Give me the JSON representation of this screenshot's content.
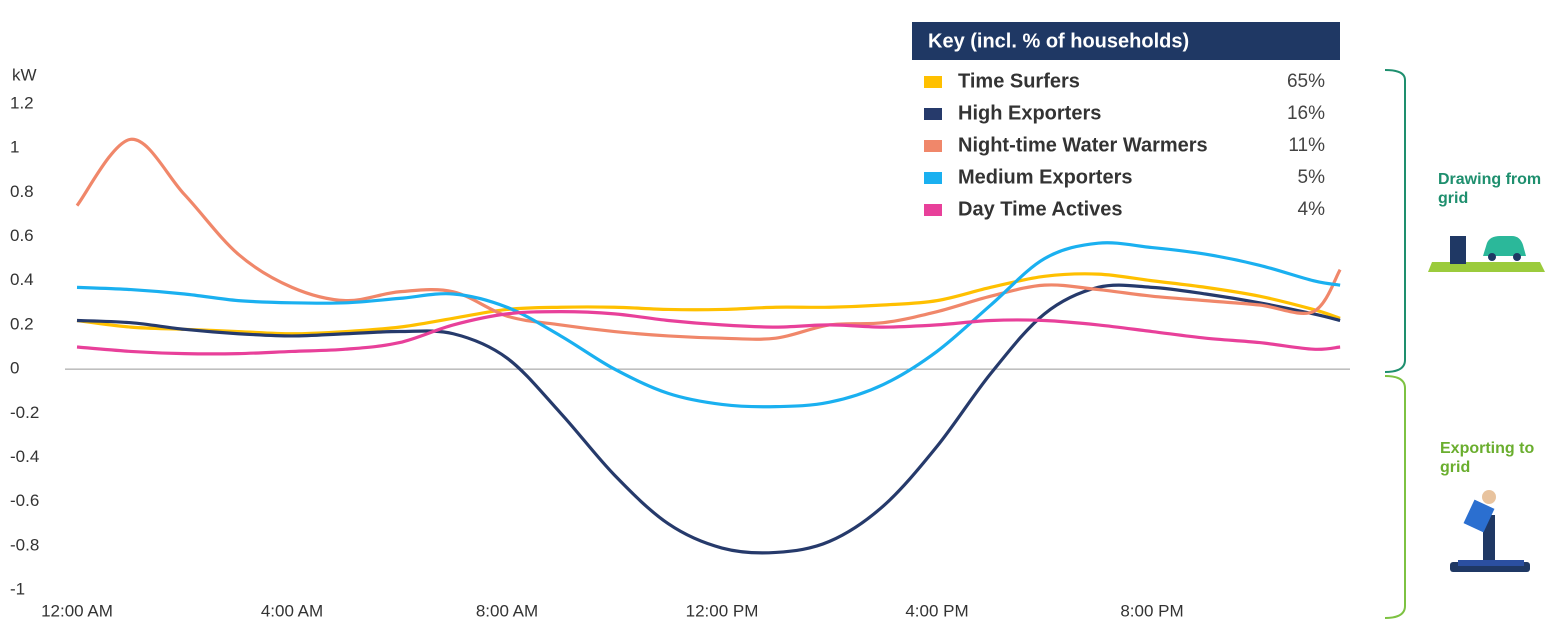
{
  "chart_data": {
    "type": "line",
    "y_unit": "kW",
    "legend_title": "Key (incl. % of households)",
    "x": [
      0,
      1,
      2,
      3,
      4,
      5,
      6,
      7,
      8,
      9,
      10,
      11,
      12,
      13,
      14,
      15,
      16,
      17,
      18,
      19,
      20,
      21,
      22,
      23,
      23.5
    ],
    "xlim": [
      0,
      24
    ],
    "xticks": [
      {
        "value": 0,
        "label": "12:00 AM"
      },
      {
        "value": 4,
        "label": "4:00 AM"
      },
      {
        "value": 8,
        "label": "8:00 AM"
      },
      {
        "value": 12,
        "label": "12:00 PM"
      },
      {
        "value": 16,
        "label": "4:00 PM"
      },
      {
        "value": 20,
        "label": "8:00 PM"
      }
    ],
    "ylim": [
      -1,
      1.2
    ],
    "yticks": [
      -1,
      -0.8,
      -0.6,
      -0.4,
      -0.2,
      0,
      0.2,
      0.4,
      0.6,
      0.8,
      1,
      1.2
    ],
    "series": [
      {
        "name": "Time Surfers",
        "share": "65%",
        "color": "#FFC000",
        "values": [
          0.22,
          0.19,
          0.18,
          0.17,
          0.16,
          0.17,
          0.19,
          0.23,
          0.27,
          0.28,
          0.28,
          0.27,
          0.27,
          0.28,
          0.28,
          0.29,
          0.31,
          0.37,
          0.42,
          0.43,
          0.4,
          0.37,
          0.33,
          0.27,
          0.23
        ]
      },
      {
        "name": "High Exporters",
        "share": "16%",
        "color": "#263A6B",
        "values": [
          0.22,
          0.21,
          0.18,
          0.16,
          0.15,
          0.16,
          0.17,
          0.16,
          0.05,
          -0.2,
          -0.48,
          -0.7,
          -0.81,
          -0.83,
          -0.78,
          -0.62,
          -0.35,
          -0.02,
          0.25,
          0.37,
          0.37,
          0.34,
          0.3,
          0.25,
          0.22
        ]
      },
      {
        "name": "Night-time Water Warmers",
        "share": "11%",
        "color": "#F0876A",
        "values": [
          0.74,
          1.04,
          0.79,
          0.52,
          0.37,
          0.31,
          0.35,
          0.35,
          0.24,
          0.2,
          0.17,
          0.15,
          0.14,
          0.14,
          0.2,
          0.21,
          0.26,
          0.33,
          0.38,
          0.36,
          0.33,
          0.31,
          0.29,
          0.26,
          0.45
        ]
      },
      {
        "name": "Medium Exporters",
        "share": "5%",
        "color": "#1AB0F0",
        "values": [
          0.37,
          0.36,
          0.34,
          0.31,
          0.3,
          0.3,
          0.32,
          0.34,
          0.28,
          0.15,
          0.0,
          -0.11,
          -0.16,
          -0.17,
          -0.15,
          -0.07,
          0.08,
          0.29,
          0.5,
          0.57,
          0.55,
          0.52,
          0.47,
          0.4,
          0.38
        ]
      },
      {
        "name": "Day Time Actives",
        "share": "4%",
        "color": "#E8409A",
        "values": [
          0.1,
          0.08,
          0.07,
          0.07,
          0.08,
          0.09,
          0.12,
          0.2,
          0.25,
          0.26,
          0.25,
          0.22,
          0.2,
          0.19,
          0.2,
          0.19,
          0.2,
          0.22,
          0.22,
          0.2,
          0.17,
          0.14,
          0.12,
          0.09,
          0.1
        ]
      }
    ],
    "annotations": [
      "Drawing from grid",
      "Exporting to grid"
    ]
  }
}
